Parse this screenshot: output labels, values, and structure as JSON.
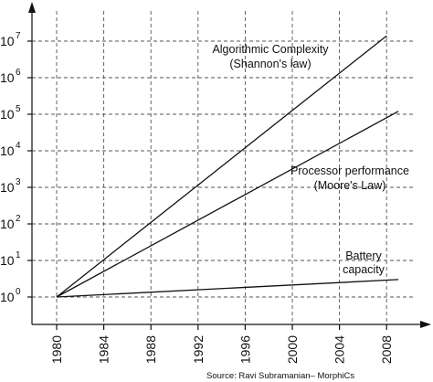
{
  "chart_data": {
    "type": "line",
    "x_ticks": [
      "1980",
      "1984",
      "1988",
      "1992",
      "1996",
      "2000",
      "2004",
      "2008"
    ],
    "y_ticks": [
      {
        "base": "10",
        "exp": "0"
      },
      {
        "base": "10",
        "exp": "1"
      },
      {
        "base": "10",
        "exp": "2"
      },
      {
        "base": "10",
        "exp": "3"
      },
      {
        "base": "10",
        "exp": "4"
      },
      {
        "base": "10",
        "exp": "5"
      },
      {
        "base": "10",
        "exp": "6"
      },
      {
        "base": "10",
        "exp": "7"
      }
    ],
    "xlim": [
      1977.5,
      2009
    ],
    "ylim_log10": [
      -0.8,
      7.2
    ],
    "y_scale": "log",
    "grid": true,
    "series": [
      {
        "name_lines": [
          "Algorithmic Complexity",
          "(Shannon's law)"
        ],
        "x": [
          1980,
          2008
        ],
        "y": [
          1,
          14000000
        ]
      },
      {
        "name_lines": [
          "Processor performance",
          "(Moore's Law)"
        ],
        "x": [
          1980,
          2009
        ],
        "y": [
          1,
          120000
        ]
      },
      {
        "name_lines": [
          "Battery",
          "capacity"
        ],
        "x": [
          1980,
          2009
        ],
        "y": [
          1,
          3
        ]
      }
    ],
    "source": "Source: Ravi Subramanian– MorphiCs"
  }
}
